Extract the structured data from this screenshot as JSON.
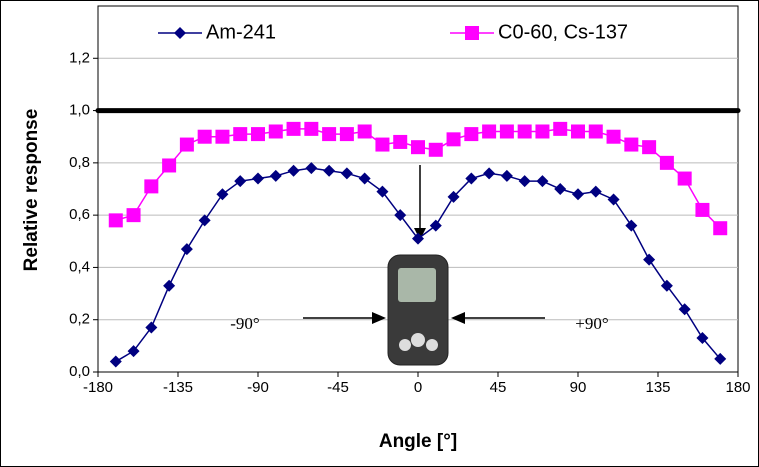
{
  "chart_data": {
    "type": "line",
    "xlabel": "Angle [°]",
    "ylabel": "Relative response",
    "x": [
      -170,
      -160,
      -150,
      -140,
      -130,
      -120,
      -110,
      -100,
      -90,
      -80,
      -70,
      -60,
      -50,
      -40,
      -30,
      -20,
      -10,
      0,
      10,
      20,
      30,
      40,
      50,
      60,
      70,
      80,
      90,
      100,
      110,
      120,
      130,
      140,
      150,
      160,
      170
    ],
    "series": [
      {
        "name": "Am-241",
        "color": "#000080",
        "marker": "diamond",
        "values": [
          0.04,
          0.08,
          0.17,
          0.33,
          0.47,
          0.58,
          0.68,
          0.73,
          0.74,
          0.75,
          0.77,
          0.78,
          0.77,
          0.76,
          0.74,
          0.69,
          0.6,
          0.51,
          0.56,
          0.67,
          0.74,
          0.76,
          0.75,
          0.73,
          0.73,
          0.7,
          0.68,
          0.69,
          0.66,
          0.56,
          0.43,
          0.33,
          0.24,
          0.13,
          0.05
        ]
      },
      {
        "name": "C0-60, Cs-137",
        "color": "#ff00ff",
        "marker": "square",
        "values": [
          0.58,
          0.6,
          0.71,
          0.79,
          0.87,
          0.9,
          0.9,
          0.91,
          0.91,
          0.92,
          0.93,
          0.93,
          0.91,
          0.91,
          0.92,
          0.87,
          0.88,
          0.86,
          0.85,
          0.89,
          0.91,
          0.92,
          0.92,
          0.92,
          0.92,
          0.93,
          0.92,
          0.92,
          0.9,
          0.87,
          0.86,
          0.8,
          0.74,
          0.62,
          0.55
        ]
      }
    ],
    "reference_line": 1.0,
    "xlim": [
      -180,
      180
    ],
    "xticks": [
      -180,
      -135,
      -90,
      -45,
      0,
      45,
      90,
      135,
      180
    ],
    "ylim": [
      0,
      1.4
    ],
    "yticks": [
      {
        "value": 0,
        "label": "0,0"
      },
      {
        "value": 0.2,
        "label": "0,2"
      },
      {
        "value": 0.4,
        "label": "0,4"
      },
      {
        "value": 0.6,
        "label": "0,6"
      },
      {
        "value": 0.8,
        "label": "0,8"
      },
      {
        "value": 1.0,
        "label": "1,0"
      },
      {
        "value": 1.2,
        "label": "1,2"
      }
    ],
    "grid": true,
    "annotations": [
      "-90°",
      "+90°"
    ]
  }
}
